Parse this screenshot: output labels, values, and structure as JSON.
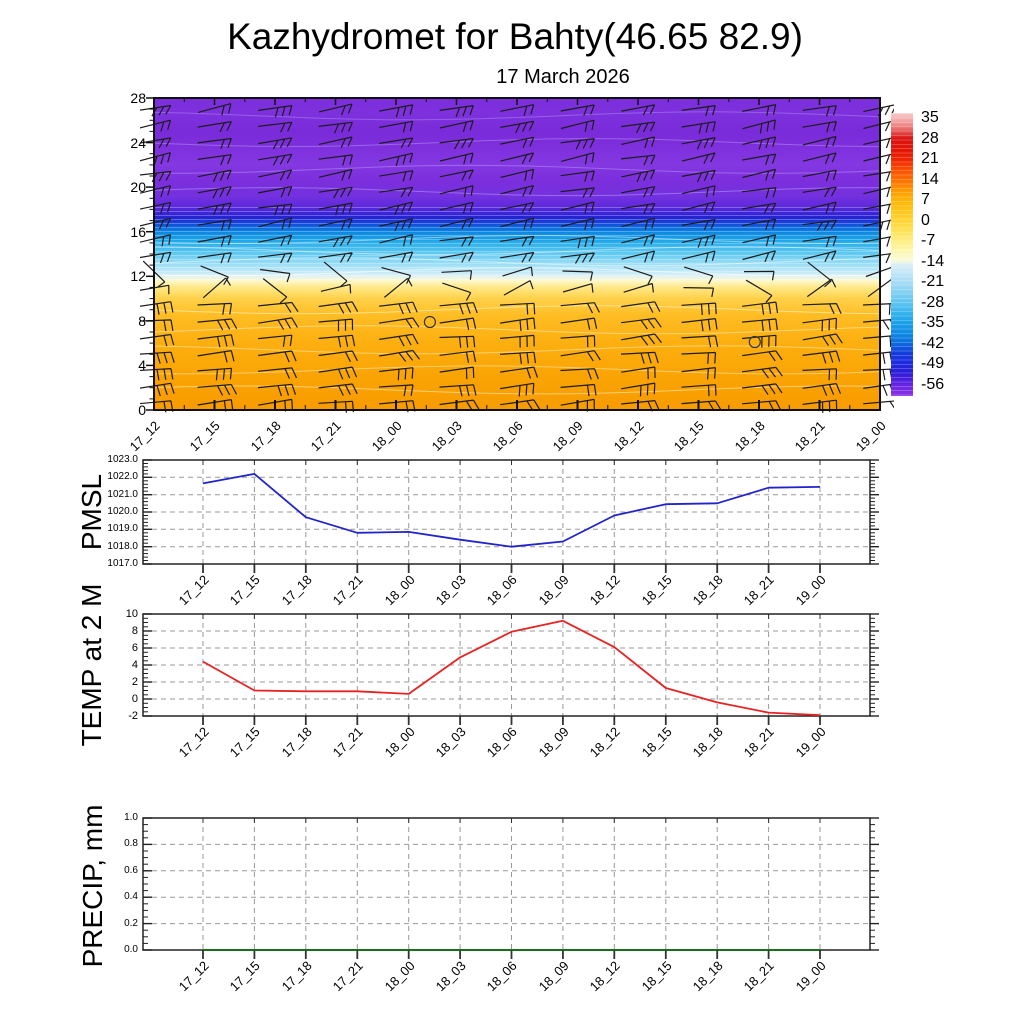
{
  "page": {
    "title": "Kazhydromet for Bahty(46.65 82.9)",
    "subtitle": "17 March 2026"
  },
  "times": [
    "17_12",
    "17_15",
    "17_18",
    "17_21",
    "18_00",
    "18_03",
    "18_06",
    "18_09",
    "18_12",
    "18_15",
    "18_18",
    "18_21",
    "19_00"
  ],
  "chart_data": [
    {
      "id": "profile",
      "type": "heatmap",
      "description": "time-height section of temperature with wind barbs",
      "x_categories": [
        "17_12",
        "17_15",
        "17_18",
        "17_21",
        "18_00",
        "18_03",
        "18_06",
        "18_09",
        "18_12",
        "18_15",
        "18_18",
        "18_21",
        "19_00"
      ],
      "y_axis": {
        "min": 0,
        "max": 28,
        "ticks": [
          0,
          4,
          8,
          12,
          16,
          20,
          24,
          28
        ]
      },
      "colorbar": {
        "ticks": [
          35,
          28,
          21,
          14,
          7,
          0,
          -7,
          -14,
          -21,
          -28,
          -35,
          -42,
          -49,
          -56
        ],
        "gradient": [
          [
            0,
            "#F8CCCC"
          ],
          [
            2,
            "#F5B0B0"
          ],
          [
            5,
            "#EC7A7A"
          ],
          [
            9,
            "#DB1414"
          ],
          [
            13,
            "#E21505"
          ],
          [
            16.5,
            "#F02603"
          ],
          [
            20,
            "#FF4D00"
          ],
          [
            24,
            "#FF7300"
          ],
          [
            27.5,
            "#FF9A00"
          ],
          [
            31,
            "#FFB607"
          ],
          [
            34.5,
            "#FFC61A"
          ],
          [
            38,
            "#FFD435"
          ],
          [
            42,
            "#FFE35C"
          ],
          [
            45.5,
            "#FFEF85"
          ],
          [
            49,
            "#FDF7B4"
          ],
          [
            52,
            "#FBFAD6"
          ],
          [
            53.5,
            "#DCEFF7"
          ],
          [
            56.5,
            "#C2E6F7"
          ],
          [
            60,
            "#A5DCF5"
          ],
          [
            63.5,
            "#82D0F2"
          ],
          [
            67,
            "#5FC4F0"
          ],
          [
            70.5,
            "#38B4EE"
          ],
          [
            74,
            "#1CA2EA"
          ],
          [
            77.5,
            "#0E8CE4"
          ],
          [
            81,
            "#0C6FDE"
          ],
          [
            84.5,
            "#123FDE"
          ],
          [
            88,
            "#1D2CDE"
          ],
          [
            91.5,
            "#2A1ED8"
          ],
          [
            94,
            "#4A1EDC"
          ],
          [
            96.5,
            "#6B26E2"
          ],
          [
            100,
            "#8C32E6"
          ]
        ]
      },
      "field_gradient": [
        [
          0,
          "#F89B00"
        ],
        [
          3,
          "#FAA404"
        ],
        [
          6,
          "#FDAF10"
        ],
        [
          8.5,
          "#FFBD24"
        ],
        [
          10,
          "#FFD14A"
        ],
        [
          11,
          "#FFE887"
        ],
        [
          11.6,
          "#FEF8CB"
        ],
        [
          12,
          "#E3F2F3"
        ],
        [
          12.4,
          "#C2E9F8"
        ],
        [
          13.2,
          "#96DCF5"
        ],
        [
          14.2,
          "#57C6F0"
        ],
        [
          15.2,
          "#1FA8E9"
        ],
        [
          16,
          "#0C85DF"
        ],
        [
          16.5,
          "#0E5EDC"
        ],
        [
          16.9,
          "#1A3BD9"
        ],
        [
          17.3,
          "#2423D0"
        ],
        [
          17.7,
          "#3F25D8"
        ],
        [
          18.3,
          "#5F2ADC"
        ],
        [
          19.2,
          "#7431DF"
        ],
        [
          20.5,
          "#7B2EDC"
        ],
        [
          22,
          "#8338E1"
        ],
        [
          23.5,
          "#7E30DD"
        ],
        [
          25,
          "#7A2BD9"
        ],
        [
          26.5,
          "#7D31DD"
        ],
        [
          28,
          "#7C2EDB"
        ]
      ],
      "contours": [
        {
          "level": 1.8,
          "color": "rgba(255,244,205,0.55)"
        },
        {
          "level": 3.6,
          "color": "rgba(255,244,205,0.5)"
        },
        {
          "level": 5.4,
          "color": "rgba(255,246,210,0.5)"
        },
        {
          "level": 7.2,
          "color": "rgba(255,248,215,0.5)"
        },
        {
          "level": 9.0,
          "color": "rgba(255,250,220,0.55)"
        },
        {
          "level": 12.4,
          "color": "rgba(255,255,255,0.6)"
        },
        {
          "level": 13.3,
          "color": "rgba(255,255,255,0.5)"
        },
        {
          "level": 14.3,
          "color": "rgba(255,255,255,0.5)"
        },
        {
          "level": 15.3,
          "color": "rgba(255,255,255,0.45)"
        },
        {
          "level": 19.6,
          "color": "rgba(205,180,255,0.45)"
        },
        {
          "level": 21.6,
          "color": "rgba(205,180,255,0.4)"
        },
        {
          "level": 24.0,
          "color": "rgba(205,180,255,0.4)"
        },
        {
          "level": 26.4,
          "color": "rgba(205,180,255,0.35)"
        }
      ],
      "wind_barbs": {
        "color": "#1c1c1c",
        "columns": 13,
        "rows": 19,
        "bands": [
          {
            "name": "upper",
            "min_level": 13.5,
            "staff_angle": -10,
            "feathers": 2
          },
          {
            "name": "transition",
            "min_level": 10,
            "staff_angle_jitter": 45,
            "feathers": 1
          },
          {
            "name": "lower",
            "min_level": 0,
            "staff_angle": -5,
            "feathers": 3
          }
        ]
      },
      "calm_circles": [
        {
          "time_index": 4.56,
          "level": 7.9
        },
        {
          "time_index": 9.93,
          "level": 6.1
        }
      ]
    },
    {
      "id": "pmsl",
      "type": "line",
      "label": "PMSL",
      "color": "#2323CC",
      "x_categories": [
        "17_12",
        "17_15",
        "17_18",
        "17_21",
        "18_00",
        "18_03",
        "18_06",
        "18_09",
        "18_12",
        "18_15",
        "18_18",
        "18_21",
        "19_00"
      ],
      "values": [
        1021.65,
        1022.2,
        1019.7,
        1018.8,
        1018.85,
        1018.4,
        1018.0,
        1018.3,
        1019.8,
        1020.45,
        1020.5,
        1021.4,
        1021.45
      ],
      "y_axis": {
        "min": 1017,
        "max": 1023,
        "tick_labels": [
          "1023.0",
          "1022.0",
          "1021.0",
          "1020.0",
          "1019.0",
          "1018.0",
          "1017.0"
        ],
        "tick_values": [
          1023,
          1022,
          1021,
          1020,
          1019,
          1018,
          1017
        ],
        "minor_step": 0.2
      },
      "grid": true
    },
    {
      "id": "temp",
      "type": "line",
      "label": "TEMP at 2 M",
      "color": "#E82222",
      "x_categories": [
        "17_12",
        "17_15",
        "17_18",
        "17_21",
        "18_00",
        "18_03",
        "18_06",
        "18_09",
        "18_12",
        "18_15",
        "18_18",
        "18_21",
        "19_00"
      ],
      "values": [
        4.4,
        1.0,
        0.9,
        0.9,
        0.6,
        4.9,
        7.9,
        9.2,
        6.1,
        1.3,
        -0.4,
        -1.6,
        -1.9
      ],
      "y_axis": {
        "min": -2,
        "max": 10,
        "tick_labels": [
          "10",
          "8",
          "6",
          "4",
          "2",
          "0",
          "-2"
        ],
        "tick_values": [
          10,
          8,
          6,
          4,
          2,
          0,
          -2
        ],
        "minor_step": 0.5
      },
      "grid": true
    },
    {
      "id": "precip",
      "type": "line",
      "label": "PRECIP, mm",
      "color": "#0A6B0A",
      "x_categories": [
        "17_12",
        "17_15",
        "17_18",
        "17_21",
        "18_00",
        "18_03",
        "18_06",
        "18_09",
        "18_12",
        "18_15",
        "18_18",
        "18_21",
        "19_00"
      ],
      "values": [
        0.0,
        0.0,
        0.0,
        0.0,
        0.0,
        0.0,
        0.0,
        0.0,
        0.0,
        0.0,
        0.0,
        0.0,
        0.0
      ],
      "y_axis": {
        "min": 0,
        "max": 1,
        "tick_labels": [
          "1.0",
          "0.8",
          "0.6",
          "0.4",
          "0.2",
          "0.0"
        ],
        "tick_values": [
          1,
          0.8,
          0.6,
          0.4,
          0.2,
          0
        ],
        "minor_step": 0.05
      },
      "grid": true
    }
  ]
}
